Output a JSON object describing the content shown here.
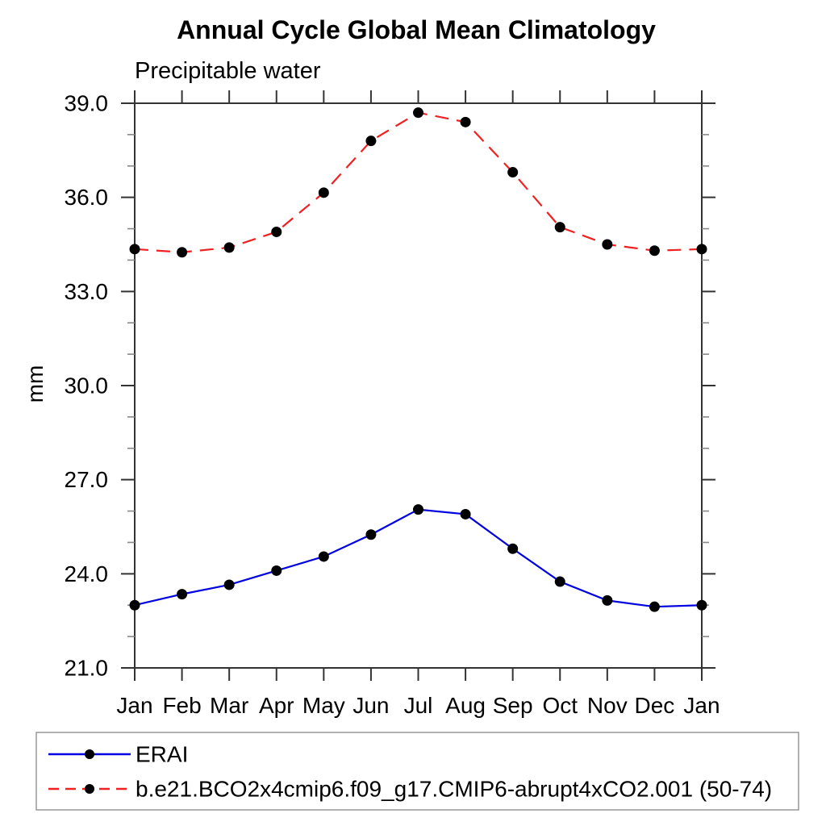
{
  "chart_data": {
    "type": "line",
    "title": "Annual Cycle Global Mean Climatology",
    "subtitle": "Precipitable water",
    "ylabel": "mm",
    "xlabel": "",
    "categories": [
      "Jan",
      "Feb",
      "Mar",
      "Apr",
      "May",
      "Jun",
      "Jul",
      "Aug",
      "Sep",
      "Oct",
      "Nov",
      "Dec",
      "Jan"
    ],
    "ylim": [
      21.0,
      39.0
    ],
    "ytick_major": [
      21.0,
      24.0,
      27.0,
      30.0,
      33.0,
      36.0,
      39.0
    ],
    "ytick_major_labels": [
      "21.0",
      "24.0",
      "27.0",
      "30.0",
      "33.0",
      "36.0",
      "39.0"
    ],
    "ytick_minor_step": 1.0,
    "grid": false,
    "legend_position": "bottom",
    "frame_color": "#333333",
    "minor_tick_color": "#888888",
    "marker_color": "#000000",
    "series": [
      {
        "name": "ERAI",
        "color": "#0000e0",
        "style": "solid",
        "marker": "filled-circle",
        "values": [
          23.0,
          23.35,
          23.65,
          24.1,
          24.55,
          25.25,
          26.05,
          25.9,
          24.8,
          23.75,
          23.15,
          22.95,
          23.0
        ]
      },
      {
        "name": "b.e21.BCO2x4cmip6.f09_g17.CMIP6-abrupt4xCO2.001 (50-74)",
        "color": "#ee2222",
        "style": "dashed",
        "marker": "filled-circle",
        "values": [
          34.35,
          34.25,
          34.4,
          34.9,
          36.15,
          37.8,
          38.7,
          38.4,
          36.8,
          35.05,
          34.5,
          34.3,
          34.35
        ]
      }
    ]
  }
}
